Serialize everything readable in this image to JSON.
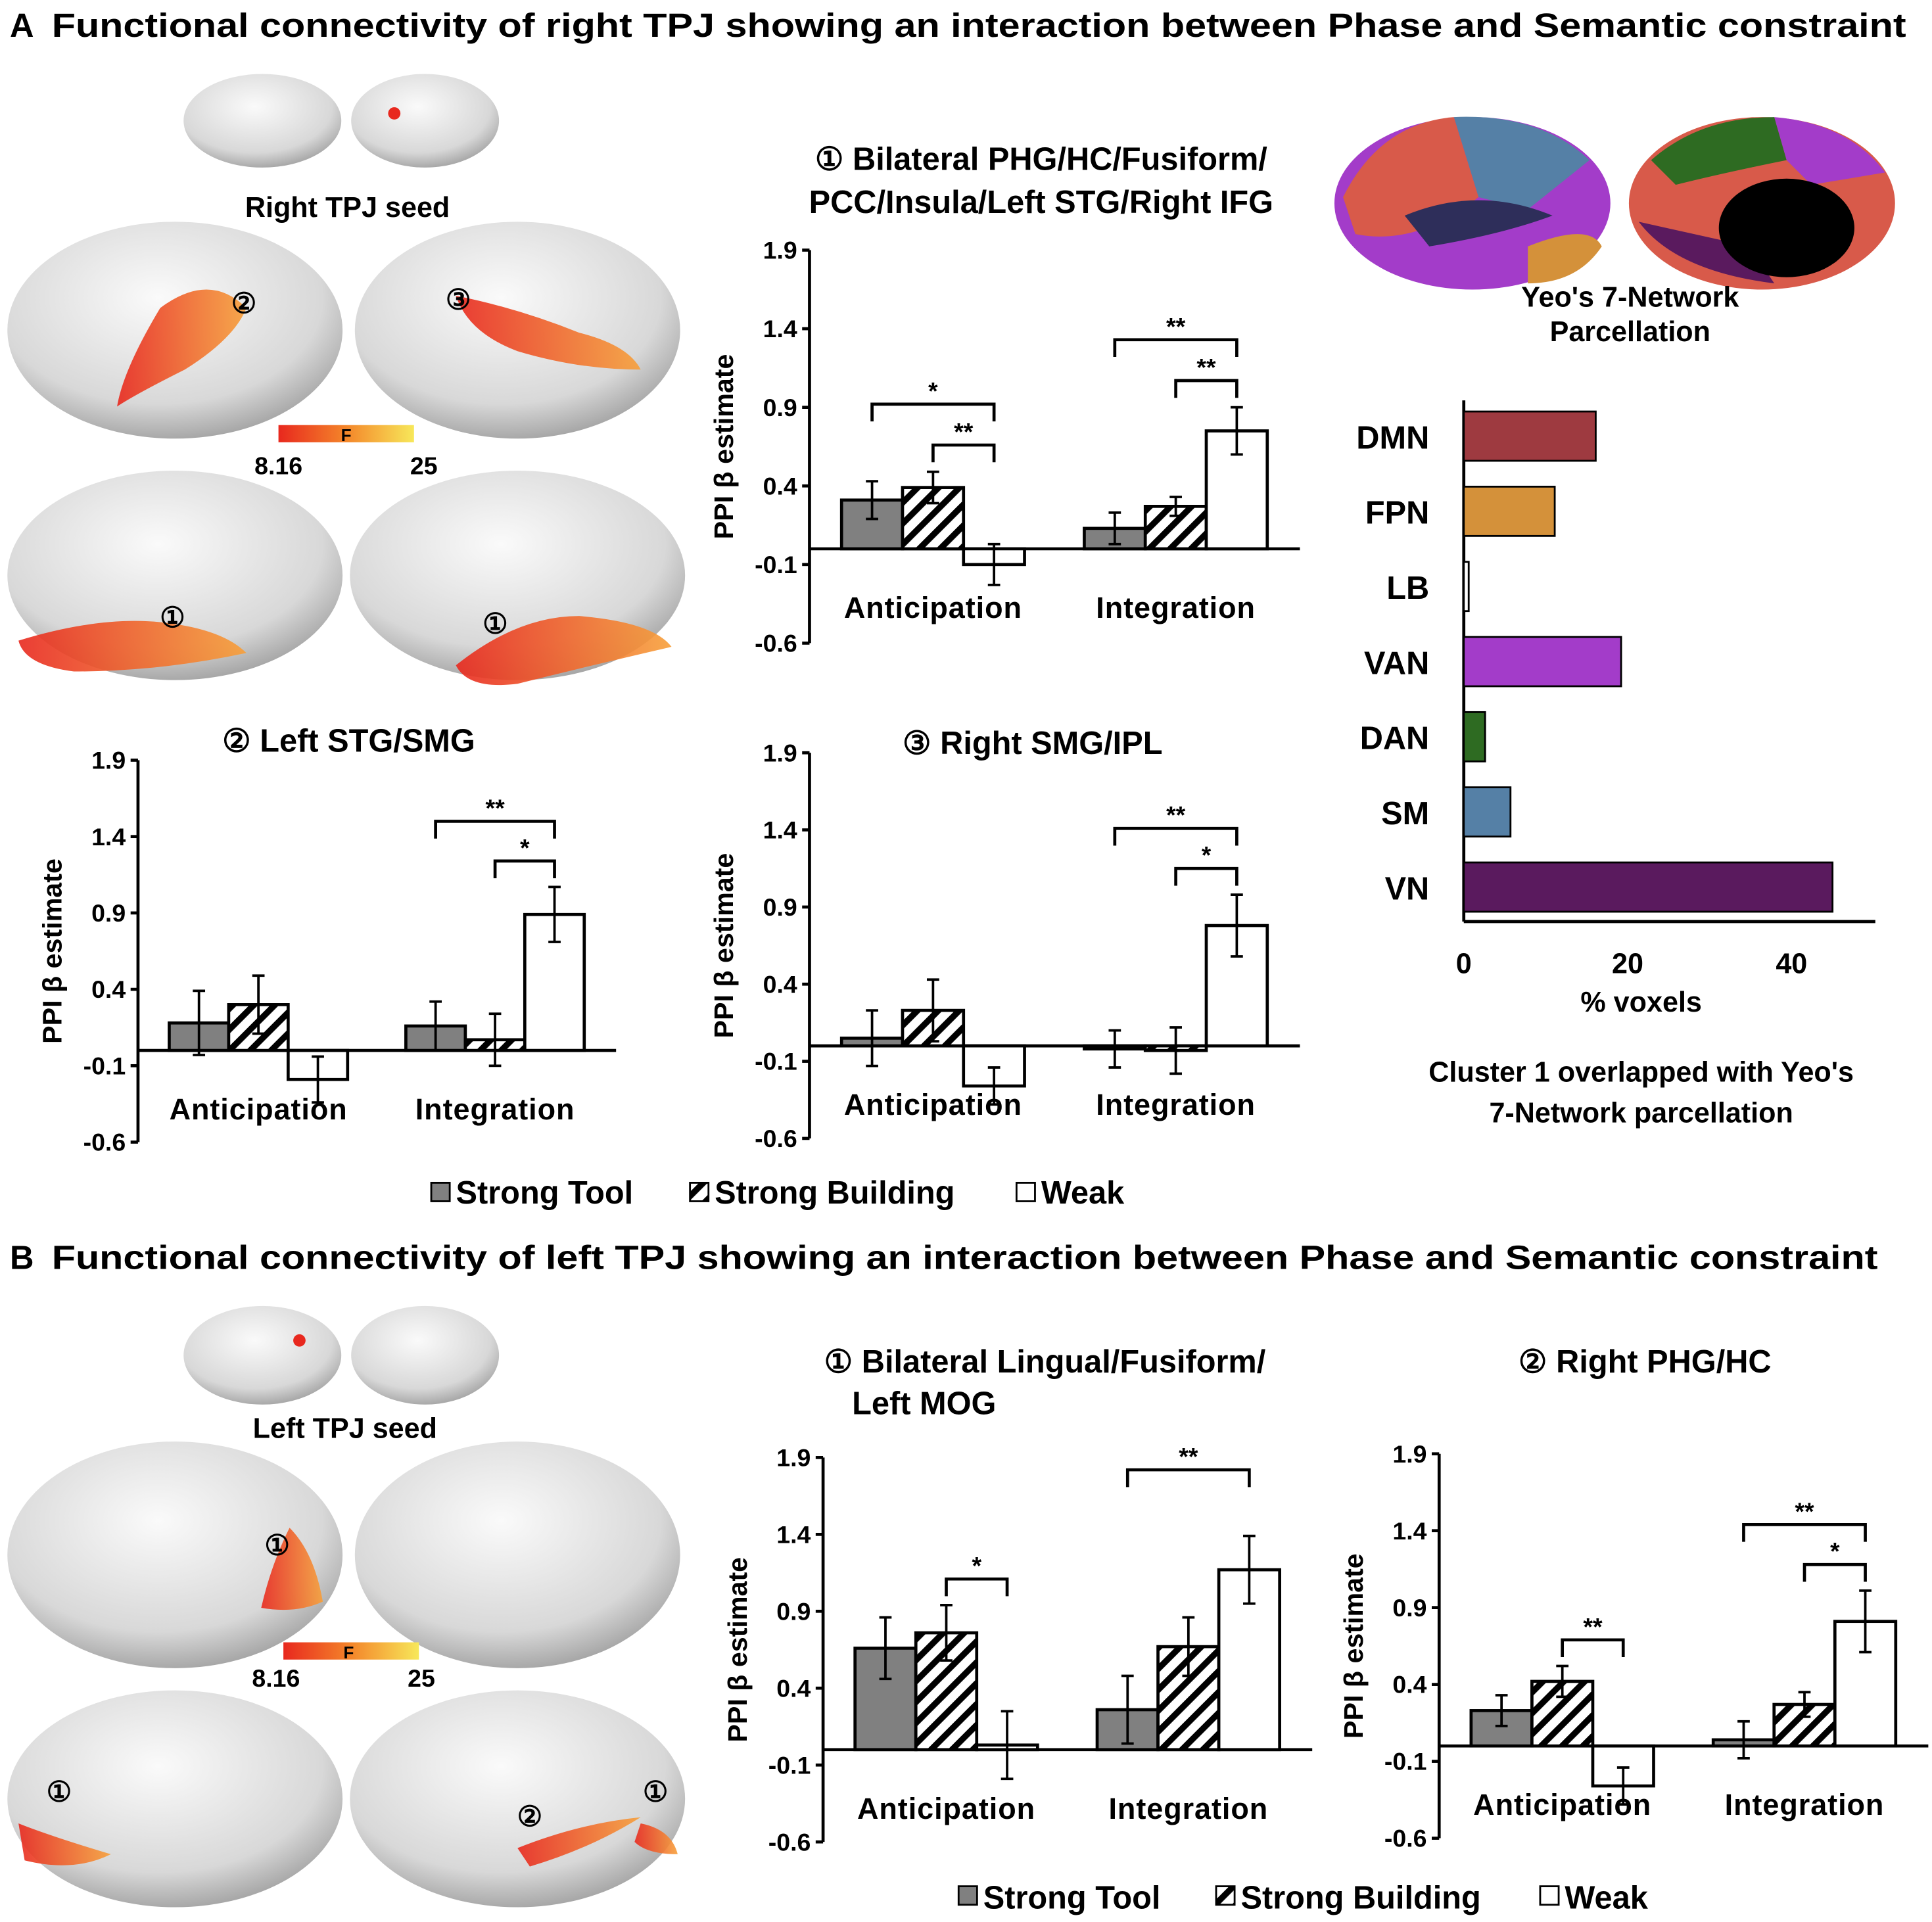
{
  "panel_a": {
    "letter": "A",
    "title": "Functional connectivity of right TPJ showing an interaction between Phase and Semantic constraint",
    "seed_label": "Right TPJ seed",
    "colorbar": {
      "stat": "F",
      "min": "8.16",
      "max": "25"
    },
    "region_markers": [
      "①",
      "②",
      "③",
      "①",
      "①"
    ],
    "parcellation_label": [
      "Yeo's 7-Network",
      "Parcellation"
    ],
    "legend": [
      "Strong Tool",
      "Strong Building",
      "Weak"
    ]
  },
  "panel_b": {
    "letter": "B",
    "title": "Functional connectivity of left TPJ showing an interaction between Phase and Semantic constraint",
    "seed_label": "Left TPJ seed",
    "colorbar": {
      "stat": "F",
      "min": "8.16",
      "max": "25"
    },
    "region_markers": [
      "①",
      "①",
      "②",
      "①"
    ],
    "legend": [
      "Strong Tool",
      "Strong Building",
      "Weak"
    ]
  },
  "colors": {
    "strong_tool": "#808080",
    "weak": "#ffffff",
    "seed": "#e8281e",
    "colorbar_low": "#e8281e",
    "colorbar_high": "#f7e85a"
  },
  "chart_data": [
    {
      "id": "A1",
      "type": "bar",
      "title": [
        "① Bilateral PHG/HC/Fusiform/",
        "PCC/Insula/Left STG/Right IFG"
      ],
      "ylabel": "PPI β estimate",
      "ylim": [
        -0.6,
        1.9
      ],
      "yticks": [
        "1.9",
        "1.4",
        "0.9",
        "0.4",
        "-0.1",
        "-0.6"
      ],
      "categories": [
        "Anticipation",
        "Integration"
      ],
      "series": [
        {
          "name": "Strong Tool",
          "values": [
            0.31,
            0.13
          ],
          "errors": [
            0.12,
            0.1
          ]
        },
        {
          "name": "Strong Building",
          "values": [
            0.39,
            0.27
          ],
          "errors": [
            0.1,
            0.06
          ]
        },
        {
          "name": "Weak",
          "values": [
            -0.1,
            0.75
          ],
          "errors": [
            0.13,
            0.15
          ]
        }
      ],
      "significance": [
        {
          "category": 0,
          "from": 1,
          "to": 2,
          "label": "**",
          "level": 1
        },
        {
          "category": 0,
          "from": 0,
          "to": 2,
          "label": "*",
          "level": 2
        },
        {
          "category": 1,
          "from": 1,
          "to": 2,
          "label": "**",
          "level": 1
        },
        {
          "category": 1,
          "from": 0,
          "to": 2,
          "label": "**",
          "level": 2
        }
      ]
    },
    {
      "id": "A2",
      "type": "bar",
      "title": [
        "② Left STG/SMG"
      ],
      "ylabel": "PPI β estimate",
      "ylim": [
        -0.6,
        1.9
      ],
      "yticks": [
        "1.9",
        "1.4",
        "0.9",
        "0.4",
        "-0.1",
        "-0.6"
      ],
      "categories": [
        "Anticipation",
        "Integration"
      ],
      "series": [
        {
          "name": "Strong Tool",
          "values": [
            0.18,
            0.16
          ],
          "errors": [
            0.21,
            0.16
          ]
        },
        {
          "name": "Strong Building",
          "values": [
            0.3,
            0.07
          ],
          "errors": [
            0.19,
            0.17
          ]
        },
        {
          "name": "Weak",
          "values": [
            -0.19,
            0.89
          ],
          "errors": [
            0.15,
            0.18
          ]
        }
      ],
      "significance": [
        {
          "category": 1,
          "from": 1,
          "to": 2,
          "label": "*",
          "level": 1
        },
        {
          "category": 1,
          "from": 0,
          "to": 2,
          "label": "**",
          "level": 2
        }
      ]
    },
    {
      "id": "A3",
      "type": "bar",
      "title": [
        "③ Right SMG/IPL"
      ],
      "ylabel": "PPI β estimate",
      "ylim": [
        -0.6,
        1.9
      ],
      "yticks": [
        "1.9",
        "1.4",
        "0.9",
        "0.4",
        "-0.1",
        "-0.6"
      ],
      "categories": [
        "Anticipation",
        "Integration"
      ],
      "series": [
        {
          "name": "Strong Tool",
          "values": [
            0.05,
            -0.02
          ],
          "errors": [
            0.18,
            0.12
          ]
        },
        {
          "name": "Strong Building",
          "values": [
            0.23,
            -0.03
          ],
          "errors": [
            0.2,
            0.15
          ]
        },
        {
          "name": "Weak",
          "values": [
            -0.26,
            0.78
          ],
          "errors": [
            0.12,
            0.2
          ]
        }
      ],
      "significance": [
        {
          "category": 1,
          "from": 1,
          "to": 2,
          "label": "*",
          "level": 1
        },
        {
          "category": 1,
          "from": 0,
          "to": 2,
          "label": "**",
          "level": 2
        }
      ]
    },
    {
      "id": "YEO",
      "type": "bar",
      "orientation": "horizontal",
      "categories": [
        "DMN",
        "FPN",
        "LB",
        "VAN",
        "DAN",
        "SM",
        "VN"
      ],
      "values": [
        16.1,
        11.1,
        0.6,
        19.2,
        2.6,
        5.7,
        45.0
      ],
      "bar_colors": [
        "#9e3a40",
        "#d4913a",
        "#ffffff",
        "#a33cc9",
        "#2e6b22",
        "#5580a6",
        "#5a1a5e"
      ],
      "xlabel": "% voxels",
      "xticks": [
        "0",
        "20",
        "40"
      ],
      "xlim": [
        0,
        50
      ],
      "caption": [
        "Cluster 1 overlapped with Yeo's",
        "7-Network parcellation"
      ]
    },
    {
      "id": "B1",
      "type": "bar",
      "title": [
        "① Bilateral Lingual/Fusiform/",
        "Left MOG"
      ],
      "ylabel": "PPI β estimate",
      "ylim": [
        -0.6,
        1.9
      ],
      "yticks": [
        "1.9",
        "1.4",
        "0.9",
        "0.4",
        "-0.1",
        "-0.6"
      ],
      "categories": [
        "Anticipation",
        "Integration"
      ],
      "series": [
        {
          "name": "Strong Tool",
          "values": [
            0.66,
            0.26
          ],
          "errors": [
            0.2,
            0.22
          ]
        },
        {
          "name": "Strong Building",
          "values": [
            0.76,
            0.67
          ],
          "errors": [
            0.18,
            0.19
          ]
        },
        {
          "name": "Weak",
          "values": [
            0.03,
            1.17
          ],
          "errors": [
            0.22,
            0.22
          ]
        }
      ],
      "significance": [
        {
          "category": 0,
          "from": 1,
          "to": 2,
          "label": "*",
          "level": 1
        },
        {
          "category": 1,
          "from": 0,
          "to": 2,
          "label": "**",
          "level": 2
        }
      ]
    },
    {
      "id": "B2",
      "type": "bar",
      "title": [
        "② Right PHG/HC"
      ],
      "ylabel": "PPI β estimate",
      "ylim": [
        -0.6,
        1.9
      ],
      "yticks": [
        "1.9",
        "1.4",
        "0.9",
        "0.4",
        "-0.1",
        "-0.6"
      ],
      "categories": [
        "Anticipation",
        "Integration"
      ],
      "series": [
        {
          "name": "Strong Tool",
          "values": [
            0.23,
            0.04
          ],
          "errors": [
            0.1,
            0.12
          ]
        },
        {
          "name": "Strong Building",
          "values": [
            0.42,
            0.27
          ],
          "errors": [
            0.1,
            0.08
          ]
        },
        {
          "name": "Weak",
          "values": [
            -0.26,
            0.81
          ],
          "errors": [
            0.12,
            0.2
          ]
        }
      ],
      "significance": [
        {
          "category": 0,
          "from": 1,
          "to": 2,
          "label": "**",
          "level": 1
        },
        {
          "category": 1,
          "from": 1,
          "to": 2,
          "label": "*",
          "level": 1
        },
        {
          "category": 1,
          "from": 0,
          "to": 2,
          "label": "**",
          "level": 2
        }
      ]
    }
  ]
}
